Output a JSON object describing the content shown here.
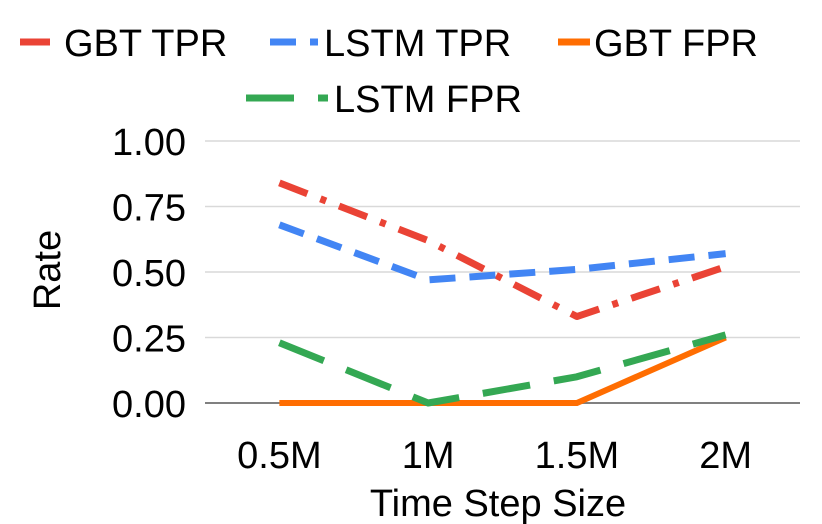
{
  "chart_data": {
    "type": "line",
    "title": "",
    "xlabel": "Time Step Size",
    "ylabel": "Rate",
    "categories": [
      "0.5M",
      "1M",
      "1.5M",
      "2M"
    ],
    "ylim": [
      0,
      1
    ],
    "yticks": [
      "0.00",
      "0.25",
      "0.50",
      "0.75",
      "1.00"
    ],
    "grid": true,
    "legend_position": "top",
    "series": [
      {
        "name": "GBT TPR",
        "values": [
          0.84,
          0.62,
          0.33,
          0.52
        ],
        "color": "#EA4335",
        "dash": "dash-dot"
      },
      {
        "name": "LSTM TPR",
        "values": [
          0.68,
          0.47,
          0.51,
          0.57
        ],
        "color": "#4285F4",
        "dash": "dash"
      },
      {
        "name": "GBT FPR",
        "values": [
          0.0,
          0.0,
          0.0,
          0.25
        ],
        "color": "#FF6D01",
        "dash": "solid"
      },
      {
        "name": "LSTM FPR",
        "values": [
          0.23,
          0.0,
          0.1,
          0.26
        ],
        "color": "#34A853",
        "dash": "long-dash"
      }
    ]
  }
}
